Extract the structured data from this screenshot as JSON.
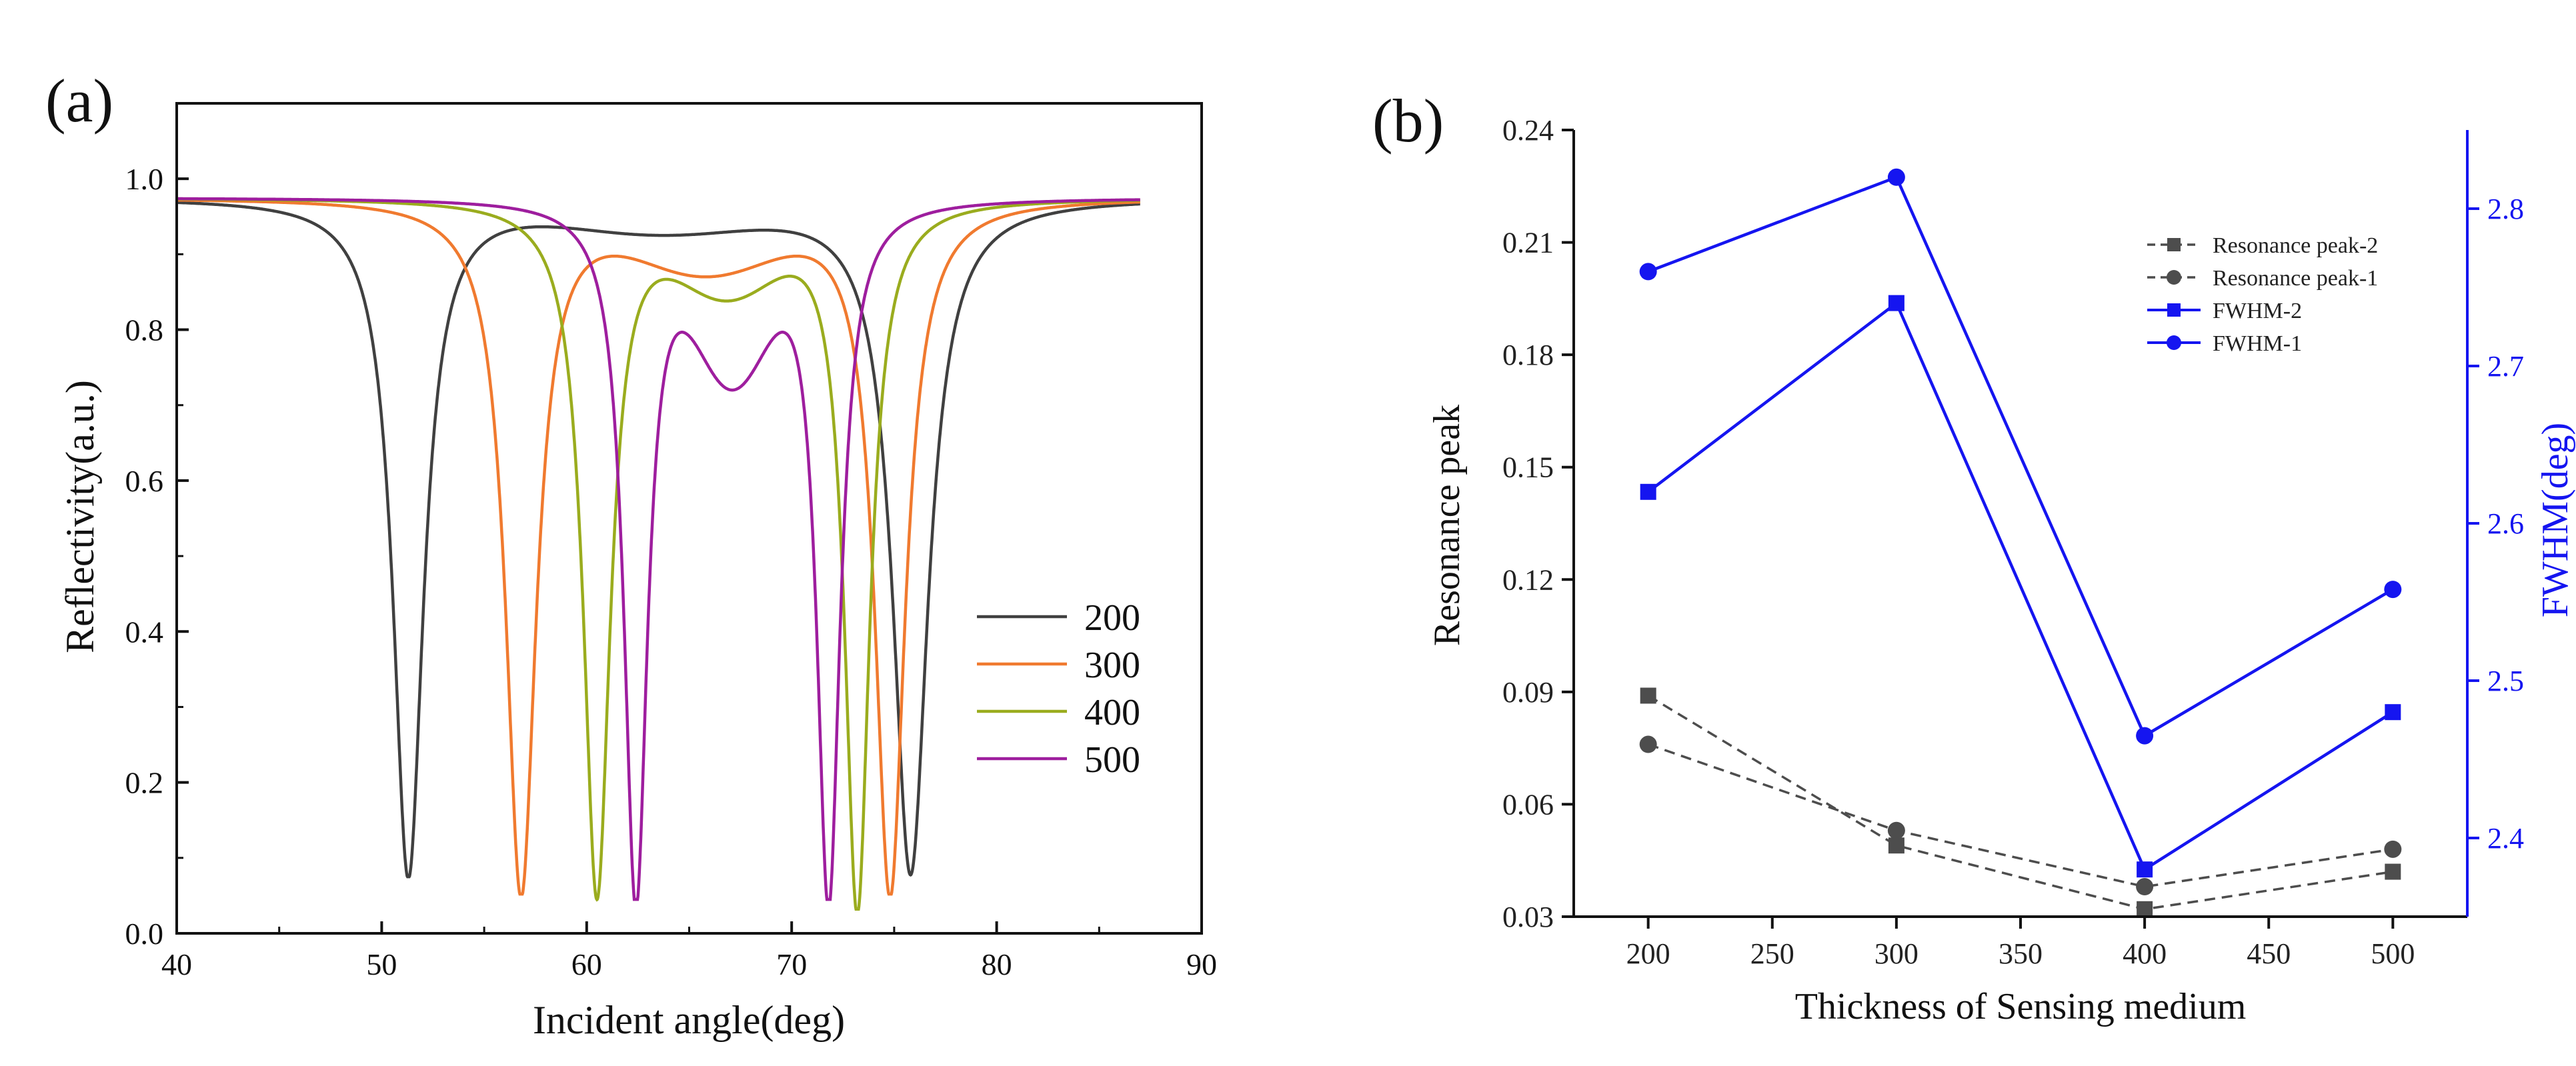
{
  "chart_data": [
    {
      "panel_label": "(a)",
      "type": "line",
      "title": "",
      "xlabel": "Incident angle(deg)",
      "ylabel": "Reflectivity(a.u.)",
      "xlim": [
        40,
        90
      ],
      "ylim": [
        0.0,
        1.1
      ],
      "xticks": [
        "40",
        "50",
        "60",
        "70",
        "80",
        "90"
      ],
      "yticks": [
        "0.0",
        "0.2",
        "0.4",
        "0.6",
        "0.8",
        "1.0"
      ],
      "legend_position": "bottom-right",
      "grid": false,
      "series": [
        {
          "name": "200",
          "color": "#404040",
          "x_end": 87,
          "base": 0.975,
          "dips": [
            {
              "x0": 51.3,
              "w": 0.9,
              "d": 0.985
            },
            {
              "x0": 75.8,
              "w": 1.05,
              "d": 1.0
            }
          ]
        },
        {
          "name": "300",
          "color": "#f07a2f",
          "x_end": 87,
          "base": 0.975,
          "dips": [
            {
              "x0": 56.8,
              "w": 0.9,
              "d": 0.99
            },
            {
              "x0": 74.8,
              "w": 0.9,
              "d": 0.99
            }
          ]
        },
        {
          "name": "400",
          "color": "#9aac1e",
          "x_end": 87,
          "base": 0.975,
          "dips": [
            {
              "x0": 60.5,
              "w": 0.8,
              "d": 1.0
            },
            {
              "x0": 73.2,
              "w": 0.75,
              "d": 1.0
            }
          ]
        },
        {
          "name": "500",
          "color": "#9e1e9e",
          "x_end": 87,
          "base": 0.975,
          "dips": [
            {
              "x0": 62.4,
              "w": 0.7,
              "d": 1.0
            },
            {
              "x0": 71.8,
              "w": 0.7,
              "d": 1.0
            }
          ]
        }
      ],
      "minima": {
        "200": [
          0.075,
          0.08
        ],
        "300": [
          0.052,
          0.052
        ],
        "400": [
          0.052,
          0.032
        ],
        "500": [
          0.045,
          0.045
        ]
      },
      "central_peak": {
        "200": 0.925,
        "300": 0.87,
        "400": 0.838,
        "500": 0.72
      }
    },
    {
      "panel_label": "(b)",
      "type": "line",
      "title": "",
      "xlabel": "Thickness of Sensing medium",
      "ylabel": "Resonance peak",
      "y2label": "FWHM(deg)",
      "xlim": [
        170,
        530
      ],
      "ylim": [
        0.03,
        0.24
      ],
      "y2lim": [
        2.35,
        2.85
      ],
      "xticks": [
        "200",
        "250",
        "300",
        "350",
        "400",
        "450",
        "500"
      ],
      "yticks": [
        "0.03",
        "0.06",
        "0.09",
        "0.12",
        "0.15",
        "0.18",
        "0.21",
        "0.24"
      ],
      "y2ticks": [
        "2.4",
        "2.5",
        "2.6",
        "2.7",
        "2.8"
      ],
      "legend_position": "top-right",
      "categories": [
        200,
        300,
        400,
        500
      ],
      "series": [
        {
          "name": "Resonance peak-2",
          "axis": "left",
          "marker": "square",
          "style": "dashed",
          "color": "#4d4d4d",
          "values": [
            0.089,
            0.049,
            0.032,
            0.042
          ]
        },
        {
          "name": "Resonance peak-1",
          "axis": "left",
          "marker": "circle",
          "style": "dashed",
          "color": "#4d4d4d",
          "values": [
            0.076,
            0.053,
            0.038,
            0.048
          ]
        },
        {
          "name": "FWHM-2",
          "axis": "right",
          "marker": "square",
          "style": "solid",
          "color": "#1515f0",
          "values": [
            2.62,
            2.74,
            2.38,
            2.48
          ]
        },
        {
          "name": "FWHM-1",
          "axis": "right",
          "marker": "circle",
          "style": "solid",
          "color": "#1515f0",
          "values": [
            2.76,
            2.82,
            2.465,
            2.558
          ]
        }
      ]
    }
  ]
}
